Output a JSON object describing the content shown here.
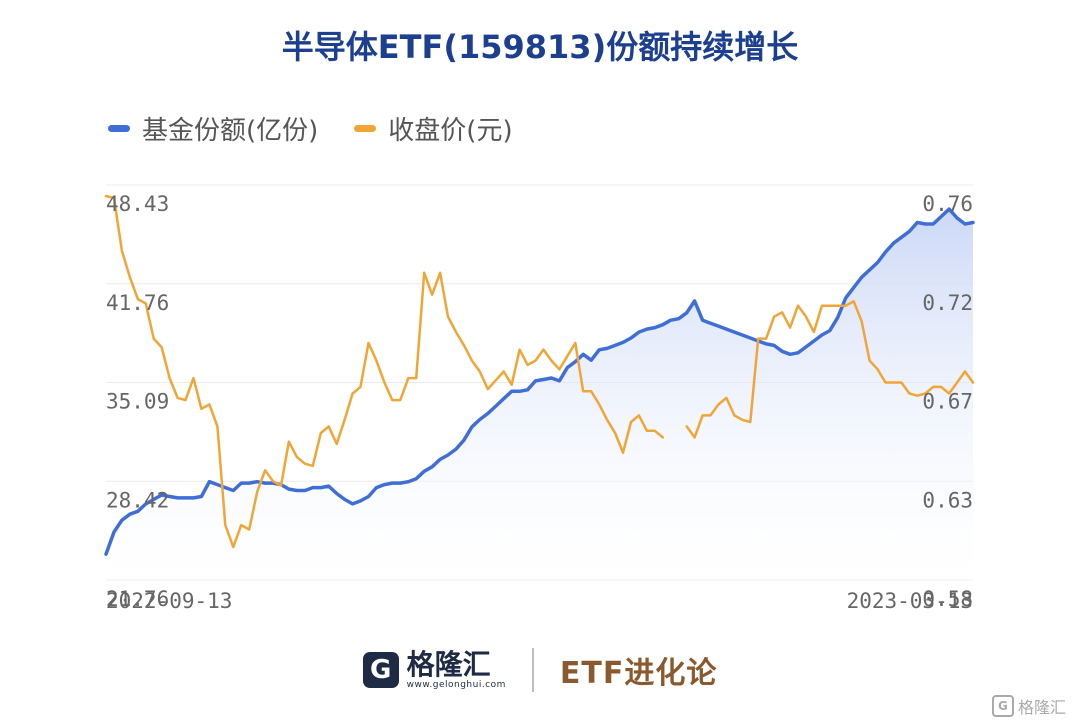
{
  "chart_data": {
    "type": "line",
    "title": "半导体ETF(159813)份额持续增长",
    "x_labels": [
      "2022-09-13",
      "2023-03-13"
    ],
    "left_axis": {
      "ticks": [
        "48.43",
        "41.76",
        "35.09",
        "28.42",
        "21.76"
      ],
      "range": [
        21.76,
        48.43
      ]
    },
    "right_axis": {
      "ticks": [
        "0.76",
        "0.72",
        "0.67",
        "0.63",
        "0.58"
      ],
      "range": [
        0.58,
        0.76
      ]
    },
    "grid": true,
    "legend_position": "top-left",
    "series": [
      {
        "name": "基金份额(亿份)",
        "axis": "left",
        "color": "#3f6fd6",
        "area": true,
        "values": [
          23.5,
          25.0,
          25.8,
          26.2,
          26.4,
          26.9,
          27.2,
          27.5,
          27.4,
          27.3,
          27.3,
          27.3,
          27.4,
          28.4,
          28.2,
          28.0,
          27.8,
          28.3,
          28.3,
          28.4,
          28.3,
          28.3,
          28.2,
          27.9,
          27.8,
          27.8,
          28.0,
          28.0,
          28.1,
          27.6,
          27.2,
          26.9,
          27.1,
          27.4,
          28.0,
          28.2,
          28.3,
          28.3,
          28.4,
          28.6,
          29.1,
          29.4,
          29.9,
          30.2,
          30.6,
          31.2,
          32.1,
          32.6,
          33.0,
          33.5,
          34.0,
          34.5,
          34.5,
          34.6,
          35.2,
          35.3,
          35.4,
          35.2,
          36.1,
          36.5,
          37.0,
          36.6,
          37.3,
          37.4,
          37.6,
          37.8,
          38.1,
          38.5,
          38.7,
          38.8,
          39.0,
          39.3,
          39.4,
          39.8,
          40.6,
          39.3,
          39.1,
          38.9,
          38.7,
          38.5,
          38.3,
          38.1,
          37.9,
          37.7,
          37.6,
          37.2,
          37.0,
          37.1,
          37.5,
          37.9,
          38.3,
          38.6,
          39.5,
          40.8,
          41.5,
          42.2,
          42.7,
          43.2,
          43.9,
          44.5,
          44.9,
          45.3,
          45.9,
          45.8,
          45.8,
          46.3,
          46.8,
          46.2,
          45.8,
          45.9
        ]
      },
      {
        "name": "收盘价(元)",
        "axis": "right",
        "color": "#f0a637",
        "values": [
          0.755,
          0.754,
          0.73,
          0.718,
          0.708,
          0.706,
          0.69,
          0.686,
          0.672,
          0.663,
          0.662,
          0.672,
          0.658,
          0.66,
          0.65,
          0.605,
          0.595,
          0.605,
          0.603,
          0.62,
          0.63,
          0.625,
          0.623,
          0.643,
          0.636,
          0.633,
          0.632,
          0.647,
          0.65,
          0.642,
          0.653,
          0.665,
          0.668,
          0.688,
          0.68,
          0.67,
          0.662,
          0.662,
          0.672,
          0.672,
          0.72,
          0.71,
          0.72,
          0.7,
          0.693,
          0.687,
          0.68,
          0.675,
          0.667,
          0.671,
          0.675,
          0.669,
          0.685,
          0.678,
          0.68,
          0.685,
          0.68,
          0.676,
          0.682,
          0.688,
          0.666,
          0.666,
          0.66,
          0.653,
          0.647,
          0.638,
          0.652,
          0.655,
          0.648,
          0.648,
          0.645,
          null,
          null,
          0.65,
          0.645,
          0.655,
          0.655,
          0.66,
          0.663,
          0.655,
          0.653,
          0.652,
          0.69,
          0.69,
          0.7,
          0.702,
          0.695,
          0.705,
          0.7,
          0.693,
          0.705,
          0.705,
          0.705,
          0.705,
          0.707,
          0.698,
          0.68,
          0.676,
          0.67,
          0.67,
          0.67,
          0.665,
          0.664,
          0.665,
          0.668,
          0.668,
          0.665,
          0.67,
          0.675,
          0.67
        ]
      }
    ]
  },
  "footer": {
    "logo_mark": "G",
    "logo_name": "格隆汇",
    "logo_url": "www.gelonghui.com",
    "brand": "ETF进化论"
  },
  "watermark": {
    "mark": "G",
    "text": "格隆汇"
  }
}
